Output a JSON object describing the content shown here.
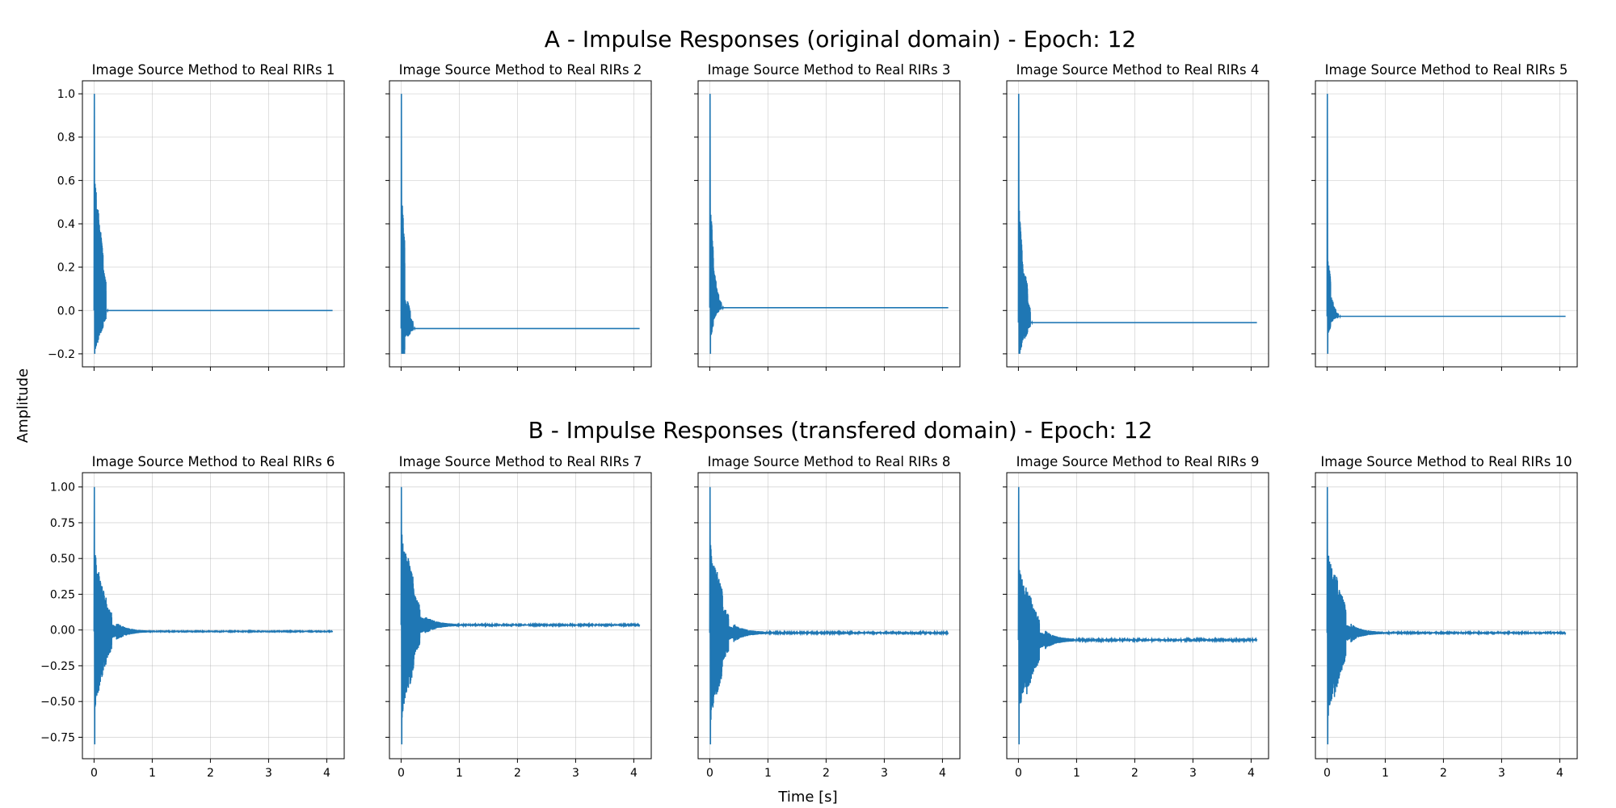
{
  "figure": {
    "ylabel": "Amplitude",
    "xlabel": "Time [s]",
    "row_titles": [
      "A - Impulse Responses (original domain) - Epoch: 12",
      "B - Impulse Responses (transfered domain) - Epoch: 12"
    ],
    "line_color": "#1f77b4"
  },
  "chart_data": [
    {
      "type": "line",
      "title": "Image Source Method to Real RIRs 1",
      "row": 0,
      "xlim": [
        -0.2,
        4.3
      ],
      "ylim": [
        -0.26,
        1.06
      ],
      "xticks": [
        0,
        1,
        2,
        3,
        4
      ],
      "yticks": [
        -0.2,
        0.0,
        0.2,
        0.4,
        0.6,
        0.8,
        1.0
      ],
      "ytick_labels": [
        "−0.2",
        "0.0",
        "0.2",
        "0.4",
        "0.6",
        "0.8",
        "1.0"
      ],
      "show_xticklabels": false,
      "show_yticklabels": true,
      "peak": 1.0,
      "env": [
        0.65,
        0.5,
        0.38,
        0.2
      ],
      "neg_min": -0.2,
      "tail": 0.0,
      "decay": 0.012,
      "tail_noise": 0.0,
      "duration": 4.1
    },
    {
      "type": "line",
      "title": "Image Source Method to Real RIRs 2",
      "row": 0,
      "xlim": [
        -0.2,
        4.3
      ],
      "ylim": [
        -0.26,
        1.06
      ],
      "xticks": [
        0,
        1,
        2,
        3,
        4
      ],
      "yticks": [],
      "ytick_labels": [],
      "show_xticklabels": false,
      "show_yticklabels": false,
      "peak": 1.0,
      "env": [
        0.62,
        0.14,
        0.13,
        0.05
      ],
      "neg_min": -0.2,
      "tail": -0.083,
      "decay": 0.012,
      "tail_noise": 0.0,
      "duration": 4.1
    },
    {
      "type": "line",
      "title": "Image Source Method to Real RIRs 3",
      "row": 0,
      "xlim": [
        -0.2,
        4.3
      ],
      "ylim": [
        -0.26,
        1.06
      ],
      "xticks": [
        0,
        1,
        2,
        3,
        4
      ],
      "yticks": [],
      "ytick_labels": [],
      "show_xticklabels": false,
      "show_yticklabels": false,
      "peak": 1.0,
      "env": [
        0.45,
        0.19,
        0.1,
        0.04
      ],
      "neg_min": -0.2,
      "tail": 0.013,
      "decay": 0.01,
      "tail_noise": 0.0,
      "duration": 4.1
    },
    {
      "type": "line",
      "title": "Image Source Method to Real RIRs 4",
      "row": 0,
      "xlim": [
        -0.2,
        4.3
      ],
      "ylim": [
        -0.26,
        1.06
      ],
      "xticks": [
        0,
        1,
        2,
        3,
        4
      ],
      "yticks": [],
      "ytick_labels": [],
      "show_xticklabels": false,
      "show_yticklabels": false,
      "peak": 1.0,
      "env": [
        0.52,
        0.3,
        0.25,
        0.1
      ],
      "neg_min": -0.2,
      "tail": -0.056,
      "decay": 0.012,
      "tail_noise": 0.0,
      "duration": 4.1
    },
    {
      "type": "line",
      "title": "Image Source Method to Real RIRs 5",
      "row": 0,
      "xlim": [
        -0.2,
        4.3
      ],
      "ylim": [
        -0.26,
        1.06
      ],
      "xticks": [
        0,
        1,
        2,
        3,
        4
      ],
      "yticks": [],
      "ytick_labels": [],
      "show_xticklabels": false,
      "show_yticklabels": false,
      "peak": 1.0,
      "env": [
        0.27,
        0.1,
        0.05,
        0.02
      ],
      "neg_min": -0.2,
      "tail": -0.027,
      "decay": 0.008,
      "tail_noise": 0.0,
      "duration": 4.1
    },
    {
      "type": "line",
      "title": "Image Source Method to Real RIRs 6",
      "row": 1,
      "xlim": [
        -0.2,
        4.3
      ],
      "ylim": [
        -0.9,
        1.1
      ],
      "xticks": [
        0,
        1,
        2,
        3,
        4
      ],
      "xtick_labels": [
        "0",
        "1",
        "2",
        "3",
        "4"
      ],
      "yticks": [
        -0.75,
        -0.5,
        -0.25,
        0.0,
        0.25,
        0.5,
        0.75,
        1.0
      ],
      "ytick_labels": [
        "−0.75",
        "−0.50",
        "−0.25",
        "0.00",
        "0.25",
        "0.50",
        "0.75",
        "1.00"
      ],
      "show_xticklabels": true,
      "show_yticklabels": true,
      "peak": 1.0,
      "env": [
        0.55,
        0.36,
        0.2,
        0.05
      ],
      "neg_min": -0.8,
      "tail": -0.01,
      "decay": 0.09,
      "tail_noise": 0.004,
      "duration": 4.1
    },
    {
      "type": "line",
      "title": "Image Source Method to Real RIRs 7",
      "row": 1,
      "xlim": [
        -0.2,
        4.3
      ],
      "ylim": [
        -0.9,
        1.1
      ],
      "xticks": [
        0,
        1,
        2,
        3,
        4
      ],
      "xtick_labels": [
        "0",
        "1",
        "2",
        "3",
        "4"
      ],
      "yticks": [],
      "ytick_labels": [],
      "show_xticklabels": true,
      "show_yticklabels": false,
      "peak": 1.0,
      "env": [
        0.65,
        0.48,
        0.22,
        0.06
      ],
      "neg_min": -0.8,
      "tail": 0.035,
      "decay": 0.1,
      "tail_noise": 0.006,
      "duration": 4.1
    },
    {
      "type": "line",
      "title": "Image Source Method to Real RIRs 8",
      "row": 1,
      "xlim": [
        -0.2,
        4.3
      ],
      "ylim": [
        -0.9,
        1.1
      ],
      "xticks": [
        0,
        1,
        2,
        3,
        4
      ],
      "xtick_labels": [
        "0",
        "1",
        "2",
        "3",
        "4"
      ],
      "yticks": [],
      "ytick_labels": [],
      "show_xticklabels": true,
      "show_yticklabels": false,
      "peak": 1.0,
      "env": [
        0.62,
        0.45,
        0.2,
        0.05
      ],
      "neg_min": -0.8,
      "tail": -0.02,
      "decay": 0.1,
      "tail_noise": 0.007,
      "duration": 4.1
    },
    {
      "type": "line",
      "title": "Image Source Method to Real RIRs 9",
      "row": 1,
      "xlim": [
        -0.2,
        4.3
      ],
      "ylim": [
        -0.9,
        1.1
      ],
      "xticks": [
        0,
        1,
        2,
        3,
        4
      ],
      "xtick_labels": [
        "0",
        "1",
        "2",
        "3",
        "4"
      ],
      "yticks": [],
      "ytick_labels": [],
      "show_xticklabels": true,
      "show_yticklabels": false,
      "peak": 1.0,
      "env": [
        0.5,
        0.4,
        0.24,
        0.06
      ],
      "neg_min": -0.8,
      "tail": -0.07,
      "decay": 0.12,
      "tail_noise": 0.008,
      "duration": 4.1
    },
    {
      "type": "line",
      "title": "Image Source Method to Real RIRs 10",
      "row": 1,
      "xlim": [
        -0.2,
        4.3
      ],
      "ylim": [
        -0.9,
        1.1
      ],
      "xticks": [
        0,
        1,
        2,
        3,
        4
      ],
      "xtick_labels": [
        "0",
        "1",
        "2",
        "3",
        "4"
      ],
      "yticks": [],
      "ytick_labels": [],
      "show_xticklabels": true,
      "show_yticklabels": false,
      "peak": 1.0,
      "env": [
        0.6,
        0.47,
        0.3,
        0.06
      ],
      "neg_min": -0.8,
      "tail": -0.02,
      "decay": 0.1,
      "tail_noise": 0.006,
      "duration": 4.1
    }
  ]
}
